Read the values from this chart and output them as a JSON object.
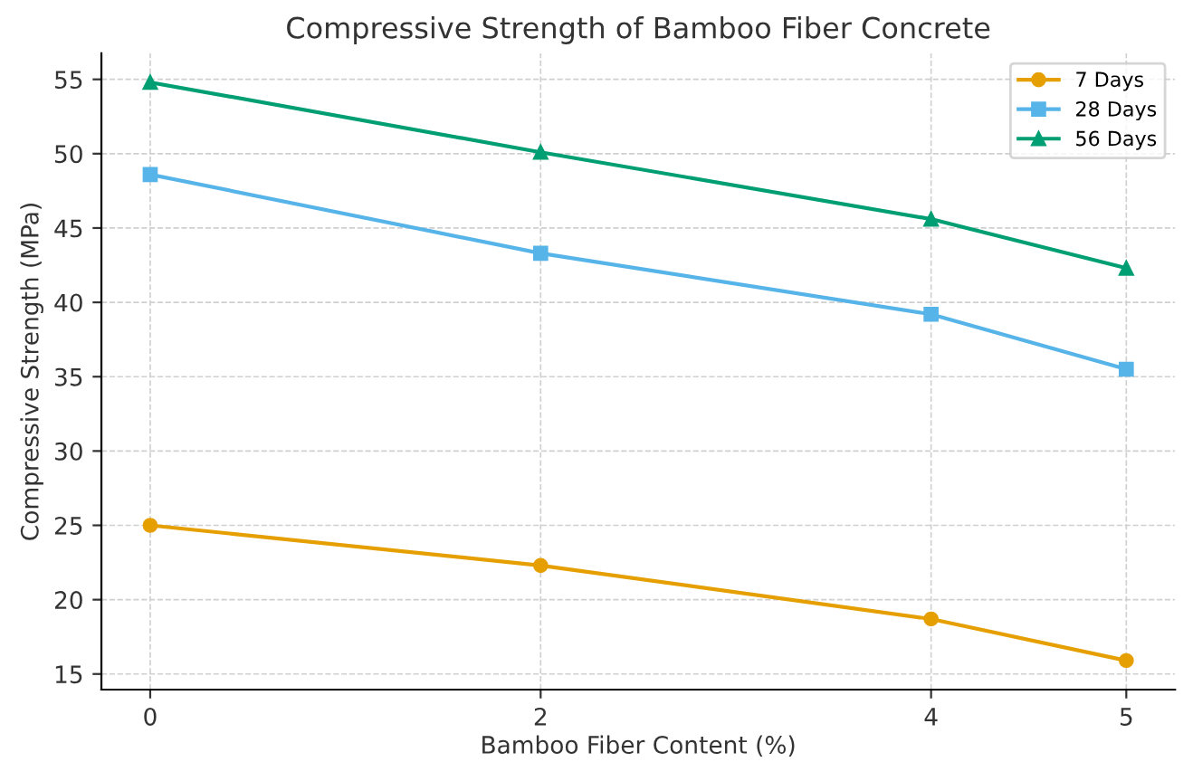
{
  "chart_data": {
    "type": "line",
    "title": "Compressive Strength of Bamboo Fiber Concrete",
    "xlabel": "Bamboo Fiber Content (%)",
    "ylabel": "Compressive Strength (MPa)",
    "x": [
      0,
      2,
      4,
      5
    ],
    "series": [
      {
        "name": "7 Days",
        "color": "#e69f00",
        "marker": "circle",
        "values": [
          25.0,
          22.3,
          18.7,
          15.9
        ]
      },
      {
        "name": "28 Days",
        "color": "#56b4e9",
        "marker": "square",
        "values": [
          48.6,
          43.3,
          39.2,
          35.5
        ]
      },
      {
        "name": "56 Days",
        "color": "#009e73",
        "marker": "triangle",
        "values": [
          54.8,
          50.1,
          45.6,
          42.3
        ]
      }
    ],
    "xlim": [
      -0.25,
      5.25
    ],
    "xticks": [
      0,
      2,
      4,
      5
    ],
    "ylim": [
      13.95,
      56.75
    ],
    "yticks": [
      15,
      20,
      25,
      30,
      35,
      40,
      45,
      50,
      55
    ],
    "grid": true,
    "legend": "top right",
    "line_style": "solid"
  }
}
